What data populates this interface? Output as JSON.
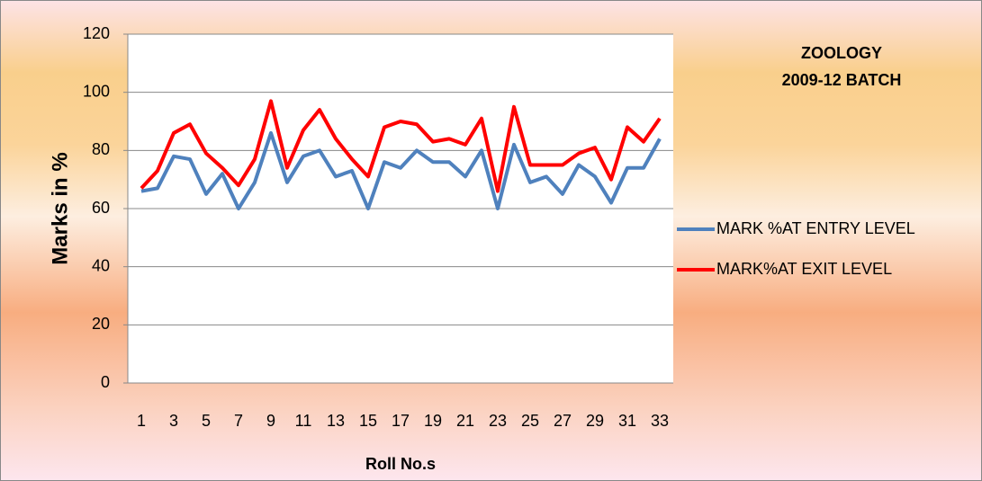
{
  "chart_data": {
    "type": "line",
    "title": "ZOOLOGY",
    "subtitle": "2009-12 BATCH",
    "x_label": "Roll No.s",
    "y_label": "Marks in %",
    "categories": [
      1,
      null,
      3,
      null,
      5,
      null,
      7,
      null,
      9,
      null,
      11,
      null,
      13,
      null,
      15,
      null,
      17,
      null,
      19,
      null,
      21,
      null,
      23,
      null,
      25,
      null,
      27,
      null,
      29,
      null,
      31,
      null,
      33
    ],
    "series": [
      {
        "name": "MARK %AT ENTRY LEVEL",
        "color": "#4f81bd",
        "values": [
          66,
          67,
          78,
          77,
          65,
          72,
          60,
          69,
          86,
          69,
          78,
          80,
          71,
          73,
          60,
          76,
          74,
          80,
          76,
          76,
          71,
          80,
          60,
          82,
          69,
          71,
          65,
          75,
          71,
          62,
          74,
          74,
          84
        ]
      },
      {
        "name": "MARK%AT EXIT LEVEL",
        "color": "#ff0000",
        "values": [
          67,
          73,
          86,
          89,
          79,
          74,
          68,
          77,
          97,
          74,
          87,
          94,
          84,
          77,
          71,
          88,
          90,
          89,
          83,
          84,
          82,
          91,
          66,
          95,
          75,
          75,
          75,
          79,
          81,
          70,
          88,
          83,
          91
        ]
      }
    ],
    "ylim": [
      0,
      120
    ],
    "yticks": [
      0,
      20,
      40,
      60,
      80,
      100,
      120
    ],
    "grid": true,
    "legend": "right"
  }
}
